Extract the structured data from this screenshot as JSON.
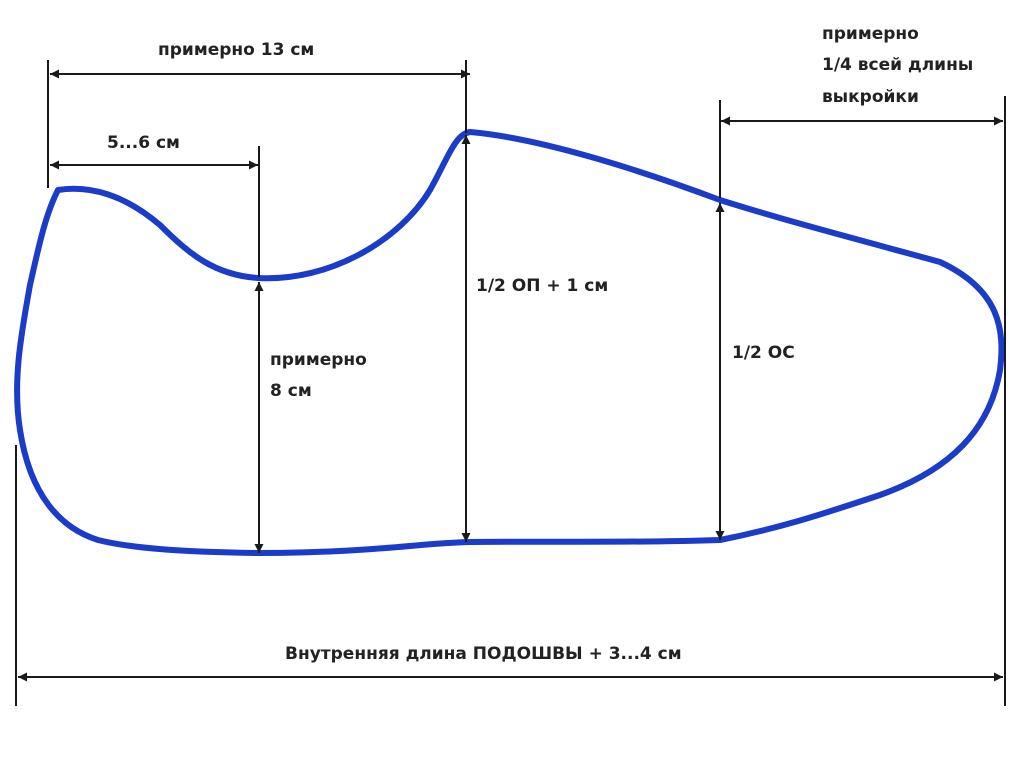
{
  "colors": {
    "outline": "#1a3cc8",
    "dimension": "#1a1a1a",
    "background": "#ffffff"
  },
  "labels": {
    "top_length": "примерно 13 см",
    "heel_width": "5...6 см",
    "toe_quarter_line1": "примерно",
    "toe_quarter_line2": "1/4 всей длины",
    "toe_quarter_line3": "выкройки",
    "heel_height_line1": "примерно",
    "heel_height_line2": "8 см",
    "instep_height": "1/2 ОП + 1 см",
    "toe_height": "1/2 ОС",
    "total_length": "Внутренняя длина ПОДОШВЫ + 3...4 см"
  }
}
